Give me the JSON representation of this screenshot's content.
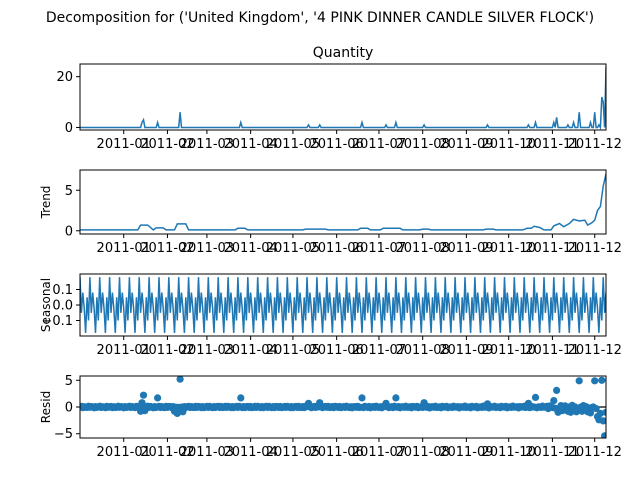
{
  "figure": {
    "suptitle": "Decomposition for ('United Kingdom', '4 PINK DINNER CANDLE SILVER FLOCK')"
  },
  "colors": {
    "series": "#1f77b4",
    "axis": "#000000"
  },
  "chart_data": [
    {
      "type": "line",
      "title": "Quantity",
      "ylabel": "",
      "ylim": [
        -1,
        25
      ],
      "yticks": [
        0,
        20
      ],
      "x_start": "2010-12-01",
      "x_end": "2011-12-09",
      "xticks": [
        "2011-01",
        "2011-02",
        "2011-03",
        "2011-04",
        "2011-05",
        "2011-06",
        "2011-07",
        "2011-08",
        "2011-09",
        "2011-10",
        "2011-11",
        "2011-12"
      ],
      "baseline": 0,
      "spikes": [
        {
          "x": "2011-01-14",
          "y": 2
        },
        {
          "x": "2011-01-15",
          "y": 3
        },
        {
          "x": "2011-01-25",
          "y": 2
        },
        {
          "x": "2011-02-10",
          "y": 6
        },
        {
          "x": "2011-03-25",
          "y": 2
        },
        {
          "x": "2011-05-12",
          "y": 1
        },
        {
          "x": "2011-05-20",
          "y": 1
        },
        {
          "x": "2011-06-19",
          "y": 2
        },
        {
          "x": "2011-07-06",
          "y": 1
        },
        {
          "x": "2011-07-13",
          "y": 2
        },
        {
          "x": "2011-08-02",
          "y": 1
        },
        {
          "x": "2011-09-16",
          "y": 1
        },
        {
          "x": "2011-10-15",
          "y": 1
        },
        {
          "x": "2011-10-20",
          "y": 2
        },
        {
          "x": "2011-11-02",
          "y": 2
        },
        {
          "x": "2011-11-04",
          "y": 4
        },
        {
          "x": "2011-11-12",
          "y": 1
        },
        {
          "x": "2011-11-16",
          "y": 2
        },
        {
          "x": "2011-11-20",
          "y": 6
        },
        {
          "x": "2011-11-28",
          "y": 2
        },
        {
          "x": "2011-12-01",
          "y": 6
        },
        {
          "x": "2011-12-04",
          "y": 1
        },
        {
          "x": "2011-12-06",
          "y": 12
        },
        {
          "x": "2011-12-07",
          "y": 10
        },
        {
          "x": "2011-12-09",
          "y": 24
        }
      ]
    },
    {
      "type": "line",
      "title": "",
      "ylabel": "Trend",
      "ylim": [
        -0.4,
        7.5
      ],
      "yticks": [
        0,
        5
      ],
      "xticks": [
        "2011-01",
        "2011-02",
        "2011-03",
        "2011-04",
        "2011-05",
        "2011-06",
        "2011-07",
        "2011-08",
        "2011-09",
        "2011-10",
        "2011-11",
        "2011-12"
      ],
      "points": [
        [
          "2010-12-01",
          0.1
        ],
        [
          "2011-01-11",
          0.1
        ],
        [
          "2011-01-13",
          0.7
        ],
        [
          "2011-01-18",
          0.7
        ],
        [
          "2011-01-22",
          0.1
        ],
        [
          "2011-01-24",
          0.35
        ],
        [
          "2011-01-29",
          0.35
        ],
        [
          "2011-01-31",
          0.1
        ],
        [
          "2011-02-06",
          0.1
        ],
        [
          "2011-02-08",
          0.85
        ],
        [
          "2011-02-14",
          0.85
        ],
        [
          "2011-02-16",
          0.1
        ],
        [
          "2011-03-21",
          0.1
        ],
        [
          "2011-03-23",
          0.3
        ],
        [
          "2011-03-28",
          0.3
        ],
        [
          "2011-03-30",
          0.1
        ],
        [
          "2011-05-08",
          0.1
        ],
        [
          "2011-05-10",
          0.2
        ],
        [
          "2011-05-24",
          0.2
        ],
        [
          "2011-05-26",
          0.1
        ],
        [
          "2011-06-16",
          0.1
        ],
        [
          "2011-06-18",
          0.3
        ],
        [
          "2011-06-23",
          0.3
        ],
        [
          "2011-06-25",
          0.1
        ],
        [
          "2011-07-02",
          0.1
        ],
        [
          "2011-07-04",
          0.3
        ],
        [
          "2011-07-16",
          0.3
        ],
        [
          "2011-07-18",
          0.1
        ],
        [
          "2011-07-30",
          0.1
        ],
        [
          "2011-08-01",
          0.2
        ],
        [
          "2011-08-05",
          0.2
        ],
        [
          "2011-08-07",
          0.1
        ],
        [
          "2011-09-13",
          0.1
        ],
        [
          "2011-09-15",
          0.2
        ],
        [
          "2011-09-20",
          0.2
        ],
        [
          "2011-09-22",
          0.1
        ],
        [
          "2011-10-11",
          0.1
        ],
        [
          "2011-10-14",
          0.3
        ],
        [
          "2011-10-17",
          0.3
        ],
        [
          "2011-10-19",
          0.55
        ],
        [
          "2011-10-23",
          0.4
        ],
        [
          "2011-10-26",
          0.1
        ],
        [
          "2011-10-31",
          0.1
        ],
        [
          "2011-11-02",
          0.6
        ],
        [
          "2011-11-06",
          0.9
        ],
        [
          "2011-11-09",
          0.5
        ],
        [
          "2011-11-13",
          0.9
        ],
        [
          "2011-11-16",
          1.4
        ],
        [
          "2011-11-20",
          1.2
        ],
        [
          "2011-11-24",
          1.3
        ],
        [
          "2011-11-26",
          0.7
        ],
        [
          "2011-11-29",
          1.0
        ],
        [
          "2011-12-01",
          1.3
        ],
        [
          "2011-12-03",
          2.5
        ],
        [
          "2011-12-05",
          3.0
        ],
        [
          "2011-12-07",
          5.5
        ],
        [
          "2011-12-09",
          7.0
        ]
      ]
    },
    {
      "type": "line",
      "title": "",
      "ylabel": "Seasonal",
      "ylim": [
        -0.2,
        0.2
      ],
      "yticks": [
        -0.1,
        0.0,
        0.1
      ],
      "ytick_labels": [
        "−0.1",
        "0.0",
        "0.1"
      ],
      "xticks": [
        "2011-01",
        "2011-02",
        "2011-03",
        "2011-04",
        "2011-05",
        "2011-06",
        "2011-07",
        "2011-08",
        "2011-09",
        "2011-10",
        "2011-11",
        "2011-12"
      ],
      "period_days": 7,
      "pattern": [
        0.18,
        -0.05,
        0.08,
        -0.02,
        -0.18,
        0.05,
        -0.1
      ]
    },
    {
      "type": "scatter",
      "title": "",
      "ylabel": "Resid",
      "ylim": [
        -5.8,
        5.8
      ],
      "yticks": [
        -5,
        0,
        5
      ],
      "ytick_labels": [
        "−5",
        "0",
        "5"
      ],
      "zero_line": true,
      "xticks": [
        "2011-01",
        "2011-02",
        "2011-03",
        "2011-04",
        "2011-05",
        "2011-06",
        "2011-07",
        "2011-08",
        "2011-09",
        "2011-10",
        "2011-11",
        "2011-12"
      ],
      "notable_points": [
        {
          "x": "2011-01-13",
          "y": -0.8
        },
        {
          "x": "2011-01-14",
          "y": 0.8
        },
        {
          "x": "2011-01-15",
          "y": 2.2
        },
        {
          "x": "2011-01-16",
          "y": -0.7
        },
        {
          "x": "2011-01-25",
          "y": 1.7
        },
        {
          "x": "2011-02-06",
          "y": -0.8
        },
        {
          "x": "2011-02-08",
          "y": -1.2
        },
        {
          "x": "2011-02-10",
          "y": 5.2
        },
        {
          "x": "2011-02-12",
          "y": -0.9
        },
        {
          "x": "2011-03-25",
          "y": 1.7
        },
        {
          "x": "2011-05-12",
          "y": 0.7
        },
        {
          "x": "2011-05-20",
          "y": 0.8
        },
        {
          "x": "2011-06-19",
          "y": 1.7
        },
        {
          "x": "2011-07-06",
          "y": 0.7
        },
        {
          "x": "2011-07-13",
          "y": 1.7
        },
        {
          "x": "2011-08-02",
          "y": 0.8
        },
        {
          "x": "2011-09-16",
          "y": 0.6
        },
        {
          "x": "2011-10-15",
          "y": 0.7
        },
        {
          "x": "2011-10-20",
          "y": 1.8
        },
        {
          "x": "2011-11-02",
          "y": 1.2
        },
        {
          "x": "2011-11-04",
          "y": 3.1
        },
        {
          "x": "2011-11-05",
          "y": -1.0
        },
        {
          "x": "2011-11-08",
          "y": -0.7
        },
        {
          "x": "2011-11-12",
          "y": -0.8
        },
        {
          "x": "2011-11-14",
          "y": -1.0
        },
        {
          "x": "2011-11-18",
          "y": -0.9
        },
        {
          "x": "2011-11-20",
          "y": 4.9
        },
        {
          "x": "2011-11-22",
          "y": -0.8
        },
        {
          "x": "2011-11-26",
          "y": -0.9
        },
        {
          "x": "2011-11-28",
          "y": -1.1
        },
        {
          "x": "2011-12-01",
          "y": 4.9
        },
        {
          "x": "2011-12-03",
          "y": -1.8
        },
        {
          "x": "2011-12-04",
          "y": -2.4
        },
        {
          "x": "2011-12-05",
          "y": -1.2
        },
        {
          "x": "2011-12-06",
          "y": 5.0
        },
        {
          "x": "2011-12-07",
          "y": -2.6
        },
        {
          "x": "2011-12-08",
          "y": -5.4
        },
        {
          "x": "2011-12-09",
          "y": -1.0
        }
      ]
    }
  ]
}
